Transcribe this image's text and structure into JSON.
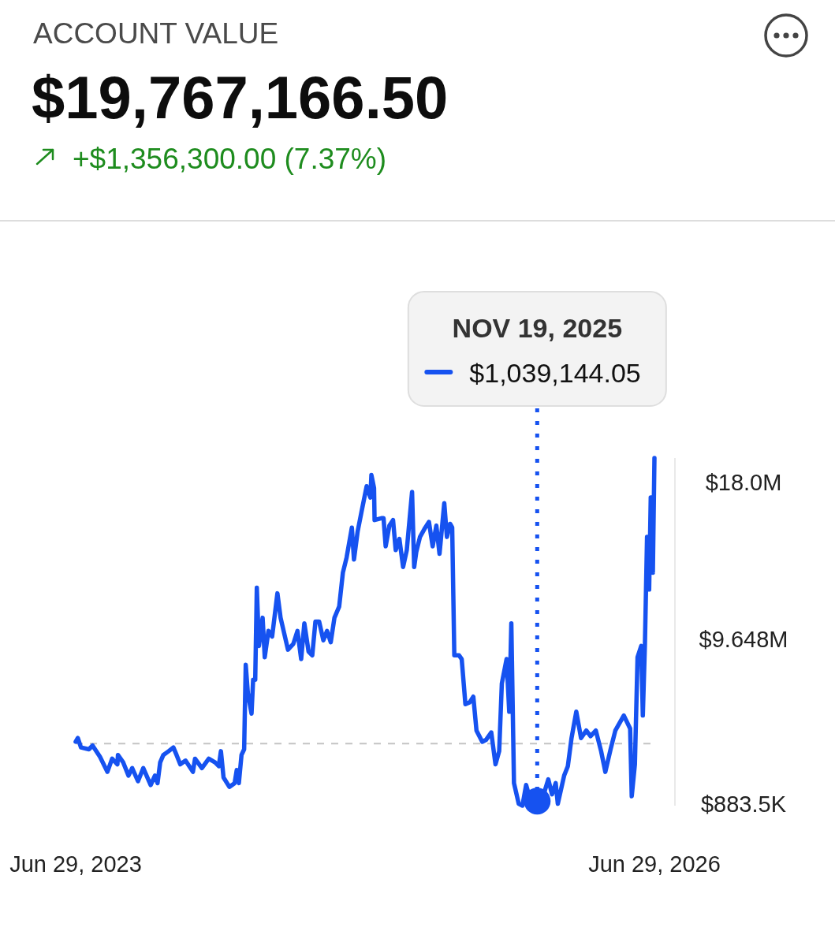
{
  "chart_data": {
    "type": "line",
    "title": "ACCOUNT VALUE",
    "subtitle": "$19,767,166.50",
    "annotations": [
      "+$1,356,300.00 (7.37%)",
      "$1,039,144.05"
    ],
    "x": [
      "2023-06-29",
      "2023-07-03",
      "2023-07-09",
      "2023-07-24",
      "2023-07-31",
      "2023-08-14",
      "2023-08-28",
      "2023-09-06",
      "2023-09-16",
      "2023-09-17",
      "2023-09-27",
      "2023-10-07",
      "2023-10-14",
      "2023-10-25",
      "2023-11-04",
      "2023-11-18",
      "2023-11-26",
      "2023-12-01",
      "2023-12-06",
      "2023-12-12",
      "2023-12-22",
      "2023-12-31",
      "2024-01-06",
      "2024-01-13",
      "2024-01-23",
      "2024-02-06",
      "2024-02-10",
      "2024-02-23",
      "2024-03-07",
      "2024-03-19",
      "2024-03-26",
      "2024-03-30",
      "2024-04-04",
      "2024-04-15",
      "2024-04-25",
      "2024-04-29",
      "2024-05-03",
      "2024-05-08",
      "2024-05-13",
      "2024-05-16",
      "2024-05-20",
      "2024-05-27",
      "2024-05-30",
      "2024-06-03",
      "2024-06-06",
      "2024-06-10",
      "2024-06-17",
      "2024-06-21",
      "2024-06-28",
      "2024-07-05",
      "2024-07-15",
      "2024-07-21",
      "2024-08-04",
      "2024-08-14",
      "2024-08-22",
      "2024-08-29",
      "2024-09-04",
      "2024-09-12",
      "2024-09-19",
      "2024-09-25",
      "2024-10-02",
      "2024-10-10",
      "2024-10-17",
      "2024-10-24",
      "2024-10-31",
      "2024-11-09",
      "2024-11-16",
      "2024-11-23",
      "2024-12-03",
      "2024-12-07",
      "2024-12-14",
      "2024-12-21",
      "2024-12-31",
      "2025-01-07",
      "2025-01-09",
      "2025-01-14",
      "2025-01-15",
      "2025-01-28",
      "2025-02-01",
      "2025-02-05",
      "2025-02-12",
      "2025-02-19",
      "2025-02-24",
      "2025-03-03",
      "2025-03-10",
      "2025-03-17",
      "2025-03-27",
      "2025-03-31",
      "2025-04-04",
      "2025-04-11",
      "2025-04-21",
      "2025-04-28",
      "2025-05-05",
      "2025-05-12",
      "2025-05-18",
      "2025-05-27",
      "2025-06-01",
      "2025-06-07",
      "2025-06-11",
      "2025-06-15",
      "2025-06-24",
      "2025-06-29",
      "2025-07-06",
      "2025-07-14",
      "2025-07-21",
      "2025-07-27",
      "2025-08-07",
      "2025-08-14",
      "2025-08-24",
      "2025-09-01",
      "2025-09-08",
      "2025-09-13",
      "2025-09-22",
      "2025-09-27",
      "2025-10-01",
      "2025-10-06",
      "2025-10-15",
      "2025-10-22",
      "2025-10-29",
      "2025-11-05",
      "2025-11-19",
      "2025-11-29",
      "2025-12-10",
      "2025-12-17",
      "2025-12-24",
      "2025-12-28",
      "2026-01-09",
      "2026-01-16",
      "2026-01-23",
      "2026-02-01",
      "2026-02-10",
      "2026-02-20",
      "2026-02-28",
      "2026-03-10",
      "2026-03-20",
      "2026-03-28",
      "2026-04-07",
      "2026-04-16",
      "2026-04-28",
      "2026-05-02",
      "2026-05-14",
      "2026-05-17",
      "2026-05-23",
      "2026-05-28",
      "2026-06-04",
      "2026-06-07",
      "2026-06-11",
      "2026-06-15",
      "2026-06-19",
      "2026-06-22",
      "2026-06-26",
      "2026-06-29"
    ],
    "series": [
      {
        "color": "#1652f0",
        "values": [
          4200000,
          4400000,
          3900000,
          3800000,
          4000000,
          3400000,
          2600000,
          3300000,
          3000000,
          3500000,
          3100000,
          2400000,
          2800000,
          2100000,
          2800000,
          1900000,
          2400000,
          2000000,
          3100000,
          3500000,
          3700000,
          3900000,
          3500000,
          3000000,
          3200000,
          2600000,
          3300000,
          2800000,
          3300000,
          3100000,
          2900000,
          3700000,
          2300000,
          1800000,
          2000000,
          2700000,
          2000000,
          3500000,
          3800000,
          8300000,
          6800000,
          5700000,
          7500000,
          7500000,
          12400000,
          9300000,
          10800000,
          8700000,
          10100000,
          9800000,
          12100000,
          10800000,
          9100000,
          9400000,
          10100000,
          8600000,
          10500000,
          9000000,
          8800000,
          10600000,
          10600000,
          9600000,
          10100000,
          9500000,
          10800000,
          11400000,
          13200000,
          14000000,
          15600000,
          13900000,
          15400000,
          16400000,
          17800000,
          17200000,
          18400000,
          17700000,
          16000000,
          16100000,
          16100000,
          14600000,
          15700000,
          16000000,
          14400000,
          15000000,
          13500000,
          14400000,
          17500000,
          13500000,
          14300000,
          15100000,
          15600000,
          15900000,
          14600000,
          15700000,
          14200000,
          16900000,
          15100000,
          15800000,
          15600000,
          8800000,
          8800000,
          8600000,
          6200000,
          6300000,
          6600000,
          4800000,
          4200000,
          4300000,
          4700000,
          3000000,
          3700000,
          7300000,
          8600000,
          5800000,
          10500000,
          2000000,
          900000,
          800000,
          1900000,
          1200000,
          1039144.05,
          1200000,
          2200000,
          1400000,
          2000000,
          900000,
          2400000,
          2900000,
          4400000,
          5800000,
          4400000,
          4800000,
          4500000,
          4800000,
          3700000,
          2600000,
          3800000,
          4800000,
          5400000,
          5600000,
          4900000,
          1300000,
          3000000,
          8700000,
          9300000,
          5600000,
          9400000,
          15100000,
          12300000,
          17200000,
          13200000,
          19300000
        ]
      },
      {
        "type": "scatter",
        "x": [
          "2025-11-19"
        ],
        "color": "#1652f0",
        "marker": "circle",
        "values": [
          1039144.05
        ]
      }
    ],
    "xlim": [
      "2023-06-29",
      "2026-06-29"
    ],
    "xticks": [
      {
        "value": "2023-06-29",
        "label": "Jun 29, 2023"
      },
      {
        "value": "2026-06-29",
        "label": "Jun 29, 2026"
      }
    ],
    "ylim": [
      800000,
      19300000
    ],
    "yticks": [
      {
        "value": 883500,
        "label": "$883.5K"
      },
      {
        "value": 9648000,
        "label": "$9.648M"
      },
      {
        "value": 18000000,
        "label": "$18.0M"
      }
    ],
    "ref_lines": [
      {
        "axis": "y",
        "value": 4100000,
        "line_style": "dashed",
        "color": "#c4c4c4"
      },
      {
        "axis": "x",
        "value": "2025-11-19",
        "label": "NOV 19, 2025",
        "line_style": "dotted",
        "color": "#1652f0"
      }
    ]
  }
}
